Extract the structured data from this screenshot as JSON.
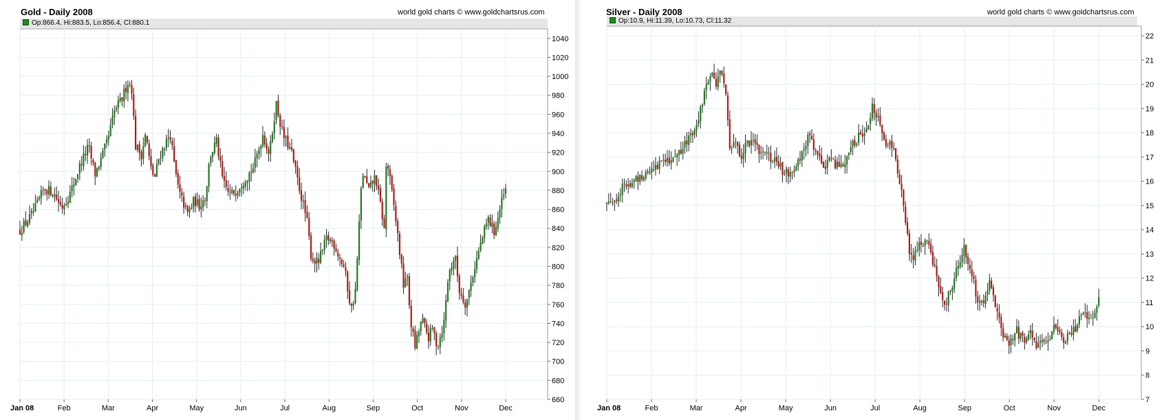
{
  "chart_data": [
    {
      "type": "candlestick",
      "title": "Gold - Daily 2008",
      "credit": "world gold charts © www.goldchartsrus.com",
      "ohlc_readout": "Op:866.4, Hi:883.5, Lo:856.4, Cl:880.1",
      "x_labels": [
        "Jan 08",
        "Feb",
        "Mar",
        "Apr",
        "May",
        "Jun",
        "Jul",
        "Aug",
        "Sep",
        "Oct",
        "Nov",
        "Dec"
      ],
      "y_ticks": [
        660,
        680,
        700,
        720,
        740,
        760,
        780,
        800,
        820,
        840,
        860,
        880,
        900,
        920,
        940,
        960,
        980,
        1000,
        1020,
        1040
      ],
      "ylim": [
        660,
        1050
      ],
      "y_axis_side": "right",
      "grid": true,
      "up_color": "#1f7a1f",
      "down_color": "#b01818",
      "wick_color": "#222222",
      "anchors": [
        [
          0,
          838
        ],
        [
          0.3,
          856
        ],
        [
          0.55,
          882
        ],
        [
          0.75,
          878
        ],
        [
          0.95,
          862
        ],
        [
          1.15,
          878
        ],
        [
          1.35,
          905
        ],
        [
          1.55,
          926
        ],
        [
          1.7,
          897
        ],
        [
          1.85,
          914
        ],
        [
          2.0,
          935
        ],
        [
          2.15,
          965
        ],
        [
          2.3,
          975
        ],
        [
          2.45,
          995
        ],
        [
          2.55,
          985
        ],
        [
          2.6,
          928
        ],
        [
          2.75,
          918
        ],
        [
          2.85,
          940
        ],
        [
          2.95,
          905
        ],
        [
          3.05,
          893
        ],
        [
          3.15,
          915
        ],
        [
          3.3,
          930
        ],
        [
          3.4,
          940
        ],
        [
          3.5,
          905
        ],
        [
          3.6,
          878
        ],
        [
          3.8,
          855
        ],
        [
          3.95,
          870
        ],
        [
          4.05,
          864
        ],
        [
          4.2,
          873
        ],
        [
          4.3,
          915
        ],
        [
          4.45,
          932
        ],
        [
          4.6,
          888
        ],
        [
          4.75,
          875
        ],
        [
          4.9,
          880
        ],
        [
          5.05,
          890
        ],
        [
          5.15,
          895
        ],
        [
          5.3,
          905
        ],
        [
          5.5,
          939
        ],
        [
          5.65,
          918
        ],
        [
          5.8,
          972
        ],
        [
          5.95,
          939
        ],
        [
          6.15,
          920
        ],
        [
          6.3,
          888
        ],
        [
          6.5,
          848
        ],
        [
          6.6,
          809
        ],
        [
          6.75,
          803
        ],
        [
          6.95,
          830
        ],
        [
          7.1,
          825
        ],
        [
          7.25,
          808
        ],
        [
          7.35,
          798
        ],
        [
          7.5,
          754
        ],
        [
          7.6,
          775
        ],
        [
          7.75,
          900
        ],
        [
          7.9,
          880
        ],
        [
          8.05,
          895
        ],
        [
          8.2,
          855
        ],
        [
          8.25,
          838
        ],
        [
          8.3,
          915
        ],
        [
          8.45,
          870
        ],
        [
          8.55,
          835
        ],
        [
          8.7,
          775
        ],
        [
          8.75,
          798
        ],
        [
          8.85,
          742
        ],
        [
          8.95,
          715
        ],
        [
          9.1,
          745
        ],
        [
          9.25,
          725
        ],
        [
          9.35,
          735
        ],
        [
          9.45,
          715
        ],
        [
          9.6,
          740
        ],
        [
          9.7,
          790
        ],
        [
          9.85,
          812
        ],
        [
          9.95,
          775
        ],
        [
          10.1,
          760
        ],
        [
          10.2,
          780
        ],
        [
          10.3,
          800
        ],
        [
          10.45,
          826
        ],
        [
          10.6,
          850
        ],
        [
          10.75,
          836
        ],
        [
          10.9,
          866
        ],
        [
          11.0,
          880
        ]
      ]
    },
    {
      "type": "candlestick",
      "title": "Silver - Daily 2008",
      "credit": "world gold charts © www.goldchartsrus.com",
      "ohlc_readout": "Op:10.9, Hi:11.39, Lo:10.73, Cl:11.32",
      "x_labels": [
        "Jan 08",
        "Feb",
        "Mar",
        "Apr",
        "May",
        "Jun",
        "Jul",
        "Aug",
        "Sep",
        "Oct",
        "Nov",
        "Dec"
      ],
      "y_ticks": [
        7,
        8,
        9,
        10,
        11,
        12,
        13,
        14,
        15,
        16,
        17,
        18,
        19,
        20,
        21,
        22
      ],
      "ylim": [
        7,
        22.4
      ],
      "y_axis_side": "right",
      "grid": true,
      "up_color": "#1f7a1f",
      "down_color": "#b01818",
      "wick_color": "#222222",
      "anchors": [
        [
          0,
          15.1
        ],
        [
          0.2,
          15.3
        ],
        [
          0.35,
          15.7
        ],
        [
          0.55,
          15.9
        ],
        [
          0.75,
          16.2
        ],
        [
          0.95,
          16.5
        ],
        [
          1.15,
          16.7
        ],
        [
          1.35,
          16.9
        ],
        [
          1.6,
          17.1
        ],
        [
          1.8,
          17.6
        ],
        [
          2.0,
          18.4
        ],
        [
          2.15,
          19.3
        ],
        [
          2.3,
          20.5
        ],
        [
          2.45,
          20.0
        ],
        [
          2.55,
          20.6
        ],
        [
          2.65,
          19.9
        ],
        [
          2.75,
          17.2
        ],
        [
          2.9,
          17.8
        ],
        [
          3.0,
          16.9
        ],
        [
          3.15,
          17.7
        ],
        [
          3.35,
          17.4
        ],
        [
          3.55,
          17.1
        ],
        [
          3.75,
          16.8
        ],
        [
          3.9,
          16.5
        ],
        [
          4.05,
          16.4
        ],
        [
          4.25,
          16.6
        ],
        [
          4.4,
          17.2
        ],
        [
          4.55,
          18.0
        ],
        [
          4.7,
          16.9
        ],
        [
          4.9,
          16.7
        ],
        [
          5.05,
          16.8
        ],
        [
          5.25,
          16.6
        ],
        [
          5.45,
          17.3
        ],
        [
          5.6,
          17.8
        ],
        [
          5.8,
          18.2
        ],
        [
          5.95,
          19.1
        ],
        [
          6.1,
          18.3
        ],
        [
          6.25,
          17.6
        ],
        [
          6.4,
          17.4
        ],
        [
          6.55,
          16.0
        ],
        [
          6.7,
          14.0
        ],
        [
          6.8,
          12.8
        ],
        [
          6.95,
          13.2
        ],
        [
          7.15,
          13.6
        ],
        [
          7.3,
          12.5
        ],
        [
          7.45,
          11.6
        ],
        [
          7.55,
          10.9
        ],
        [
          7.7,
          11.5
        ],
        [
          7.85,
          12.6
        ],
        [
          8.0,
          13.2
        ],
        [
          8.15,
          12.4
        ],
        [
          8.3,
          11.0
        ],
        [
          8.45,
          11.2
        ],
        [
          8.55,
          12.0
        ],
        [
          8.7,
          10.7
        ],
        [
          8.85,
          9.6
        ],
        [
          9.0,
          9.3
        ],
        [
          9.15,
          9.9
        ],
        [
          9.3,
          9.4
        ],
        [
          9.45,
          9.9
        ],
        [
          9.6,
          9.1
        ],
        [
          9.75,
          9.6
        ],
        [
          9.9,
          9.3
        ],
        [
          10.05,
          10.2
        ],
        [
          10.2,
          9.4
        ],
        [
          10.35,
          9.6
        ],
        [
          10.5,
          10.0
        ],
        [
          10.65,
          10.7
        ],
        [
          10.8,
          10.3
        ],
        [
          10.95,
          10.6
        ],
        [
          11.0,
          11.32
        ]
      ]
    }
  ]
}
